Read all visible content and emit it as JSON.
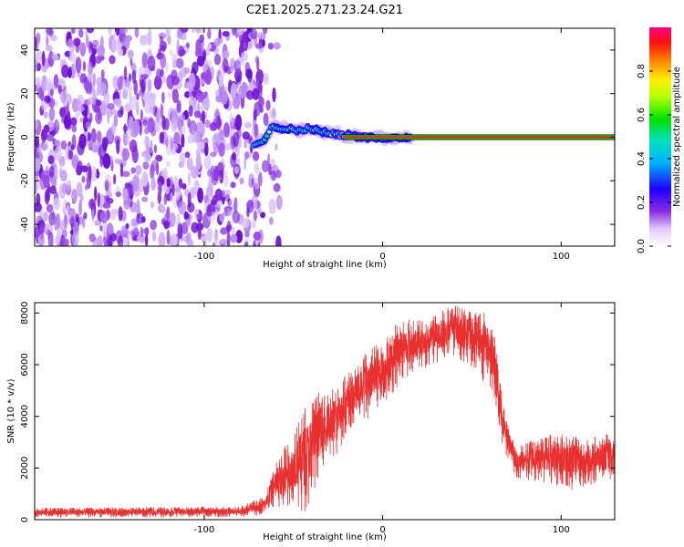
{
  "title": "C2E1.2025.271.23.24.G21",
  "chart_data": [
    {
      "type": "heatmap",
      "name": "spectrogram",
      "xlabel": "Height of straight line (km)",
      "ylabel": "Frequency (Hz)",
      "xlim": [
        -195,
        130
      ],
      "ylim": [
        -50,
        50
      ],
      "x_ticks": [
        -100,
        0,
        100
      ],
      "x_tick_labels": [
        "-100",
        "0",
        "100"
      ],
      "y_ticks": [
        -40,
        -20,
        0,
        20,
        40
      ],
      "y_tick_labels": [
        "-40",
        "-20",
        "0",
        "20",
        "40"
      ],
      "noise_region_x": [
        -195,
        -67
      ],
      "signal_track": [
        {
          "x": -72,
          "y": -3
        },
        {
          "x": -66,
          "y": -1
        },
        {
          "x": -62,
          "y": 5
        },
        {
          "x": -55,
          "y": 4
        },
        {
          "x": -48,
          "y": 3
        },
        {
          "x": -42,
          "y": 4
        },
        {
          "x": -36,
          "y": 3
        },
        {
          "x": -30,
          "y": 2
        },
        {
          "x": -24,
          "y": 1
        },
        {
          "x": -15,
          "y": 0.5
        },
        {
          "x": -5,
          "y": 0
        },
        {
          "x": 5,
          "y": -0.5
        },
        {
          "x": 15,
          "y": 0
        },
        {
          "x": 130,
          "y": 0
        }
      ],
      "colorbar": {
        "label": "Normalized spectral amplitude",
        "range": [
          0,
          1
        ],
        "ticks": [
          0.0,
          0.2,
          0.4,
          0.6,
          0.8
        ],
        "tick_labels": [
          "0.0",
          "0.2",
          "0.4",
          "0.6",
          "0.8"
        ]
      }
    },
    {
      "type": "line",
      "name": "snr",
      "xlabel": "Height of straight line (km)",
      "ylabel": "SNR (10 * v/v)",
      "xlim": [
        -195,
        130
      ],
      "ylim": [
        0,
        8400
      ],
      "x_ticks": [
        -100,
        0,
        100
      ],
      "x_tick_labels": [
        "-100",
        "0",
        "100"
      ],
      "y_ticks": [
        0,
        2000,
        4000,
        6000,
        8000
      ],
      "y_tick_labels": [
        "0",
        "2000",
        "4000",
        "6000",
        "8000"
      ],
      "color": "#e83030",
      "envelope": [
        {
          "x": -195,
          "lo": 80,
          "hi": 450
        },
        {
          "x": -80,
          "lo": 100,
          "hi": 500
        },
        {
          "x": -66,
          "lo": 200,
          "hi": 900
        },
        {
          "x": -58,
          "lo": 300,
          "hi": 2600
        },
        {
          "x": -50,
          "lo": 500,
          "hi": 3300
        },
        {
          "x": -44,
          "lo": 200,
          "hi": 4300
        },
        {
          "x": -36,
          "lo": 1500,
          "hi": 4900
        },
        {
          "x": -28,
          "lo": 2200,
          "hi": 5100
        },
        {
          "x": -20,
          "lo": 3300,
          "hi": 5600
        },
        {
          "x": -10,
          "lo": 3800,
          "hi": 6400
        },
        {
          "x": 0,
          "lo": 4400,
          "hi": 7000
        },
        {
          "x": 10,
          "lo": 5300,
          "hi": 7800
        },
        {
          "x": 20,
          "lo": 5800,
          "hi": 7700
        },
        {
          "x": 30,
          "lo": 6000,
          "hi": 8000
        },
        {
          "x": 40,
          "lo": 6300,
          "hi": 8300
        },
        {
          "x": 50,
          "lo": 5900,
          "hi": 8100
        },
        {
          "x": 58,
          "lo": 5200,
          "hi": 8000
        },
        {
          "x": 62,
          "lo": 4600,
          "hi": 7600
        },
        {
          "x": 66,
          "lo": 3200,
          "hi": 5200
        },
        {
          "x": 70,
          "lo": 2200,
          "hi": 3800
        },
        {
          "x": 75,
          "lo": 1600,
          "hi": 2800
        },
        {
          "x": 85,
          "lo": 1500,
          "hi": 3100
        },
        {
          "x": 95,
          "lo": 1400,
          "hi": 3300
        },
        {
          "x": 105,
          "lo": 1100,
          "hi": 3300
        },
        {
          "x": 115,
          "lo": 1300,
          "hi": 3100
        },
        {
          "x": 125,
          "lo": 1400,
          "hi": 3400
        },
        {
          "x": 130,
          "lo": 1600,
          "hi": 3200
        }
      ]
    }
  ]
}
